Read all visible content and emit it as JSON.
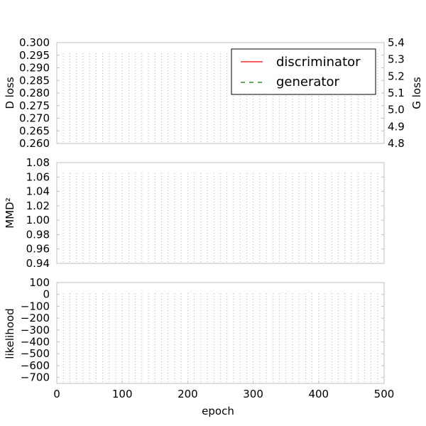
{
  "chart_data": [
    {
      "type": "line",
      "id": "loss",
      "ylabel": "D loss",
      "y2label": "G loss",
      "xlim": [
        0,
        500
      ],
      "ylim": [
        0.26,
        0.3
      ],
      "y2lim": [
        4.8,
        5.4
      ],
      "yticks": [
        "0.260",
        "0.265",
        "0.270",
        "0.275",
        "0.280",
        "0.285",
        "0.290",
        "0.295",
        "0.300"
      ],
      "y2ticks": [
        "4.8",
        "4.9",
        "5.0",
        "5.1",
        "5.2",
        "5.3",
        "5.4"
      ],
      "grid": true,
      "legend": {
        "position": "top-right",
        "entries": [
          "discriminator",
          "generator"
        ]
      },
      "series": [
        {
          "name": "discriminator",
          "color": "#ff0000",
          "linestyle": "solid",
          "values": []
        },
        {
          "name": "generator",
          "color": "#008000",
          "linestyle": "dashed",
          "values": []
        }
      ]
    },
    {
      "type": "line",
      "id": "mmd",
      "ylabel": "MMD²",
      "xlim": [
        0,
        500
      ],
      "ylim": [
        0.94,
        1.08
      ],
      "yticks": [
        "0.94",
        "0.96",
        "0.98",
        "1.00",
        "1.02",
        "1.04",
        "1.06",
        "1.08"
      ],
      "grid": true,
      "series": []
    },
    {
      "type": "line",
      "id": "likelihood",
      "ylabel": "likelihood",
      "xlabel": "epoch",
      "xlim": [
        0,
        500
      ],
      "ylim": [
        -750,
        100
      ],
      "xticks": [
        "0",
        "100",
        "200",
        "300",
        "400",
        "500"
      ],
      "yticks": [
        "−700",
        "−600",
        "−500",
        "−400",
        "−300",
        "−200",
        "−100",
        "0",
        "100"
      ],
      "grid": true,
      "series": []
    }
  ],
  "colors": {
    "frame": "#bfbfbf",
    "grid": "#b0b0b0",
    "discriminator": "#ff0000",
    "generator": "#008000"
  }
}
